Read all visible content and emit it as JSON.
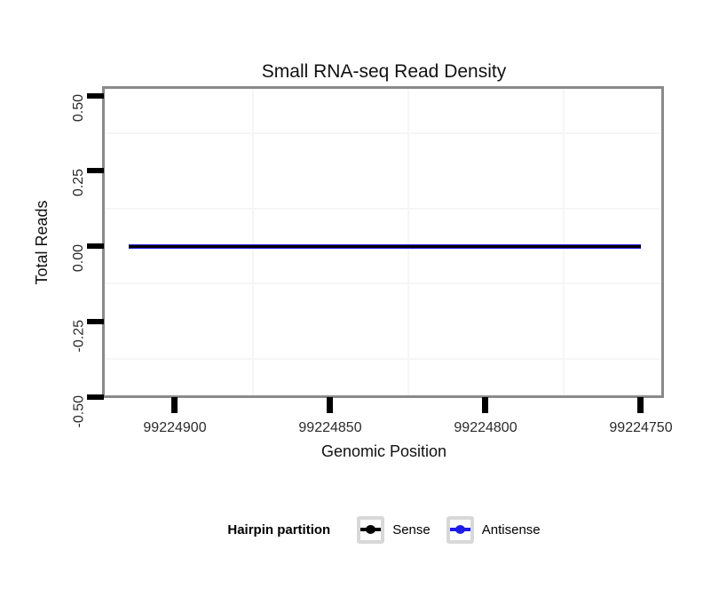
{
  "chart": {
    "title": "Small RNA-seq Read Density",
    "xlabel": "Genomic Position",
    "ylabel": "Total Reads"
  },
  "legend": {
    "title": "Hairpin partition",
    "items": [
      {
        "label": "Sense",
        "color": "#000000"
      },
      {
        "label": "Antisense",
        "color": "#1E1EE6"
      }
    ]
  },
  "chart_data": {
    "type": "line",
    "title": "Small RNA-seq Read Density",
    "xlabel": "Genomic Position",
    "ylabel": "Total Reads",
    "x_axis": {
      "reversed": true,
      "ticks": [
        99224900,
        99224850,
        99224800,
        99224750
      ],
      "tick_labels": [
        "99224900",
        "99224850",
        "99224800",
        "99224750"
      ],
      "range_displayed": [
        99224922,
        99224743
      ]
    },
    "y_axis": {
      "ticks": [
        0.5,
        0.25,
        0,
        -0.25,
        -0.5
      ],
      "tick_labels": [
        "0.50",
        "0.25",
        "0.00",
        "-0.25",
        "-0.50"
      ],
      "range_displayed": [
        -0.5,
        0.52
      ]
    },
    "grid": {
      "major": "none-visible",
      "minor": "very-light-gray",
      "background": "white"
    },
    "panel_border_color": "#8a8a8a",
    "legend_position": "bottom",
    "legend_title": "Hairpin partition",
    "series": [
      {
        "name": "Sense",
        "color": "#000000",
        "y_constant": 0,
        "x_start": 99224915,
        "x_end": 99224750
      },
      {
        "name": "Antisense",
        "color": "#1E1EE6",
        "y_constant": 0,
        "x_start": 99224915,
        "x_end": 99224750
      }
    ]
  }
}
